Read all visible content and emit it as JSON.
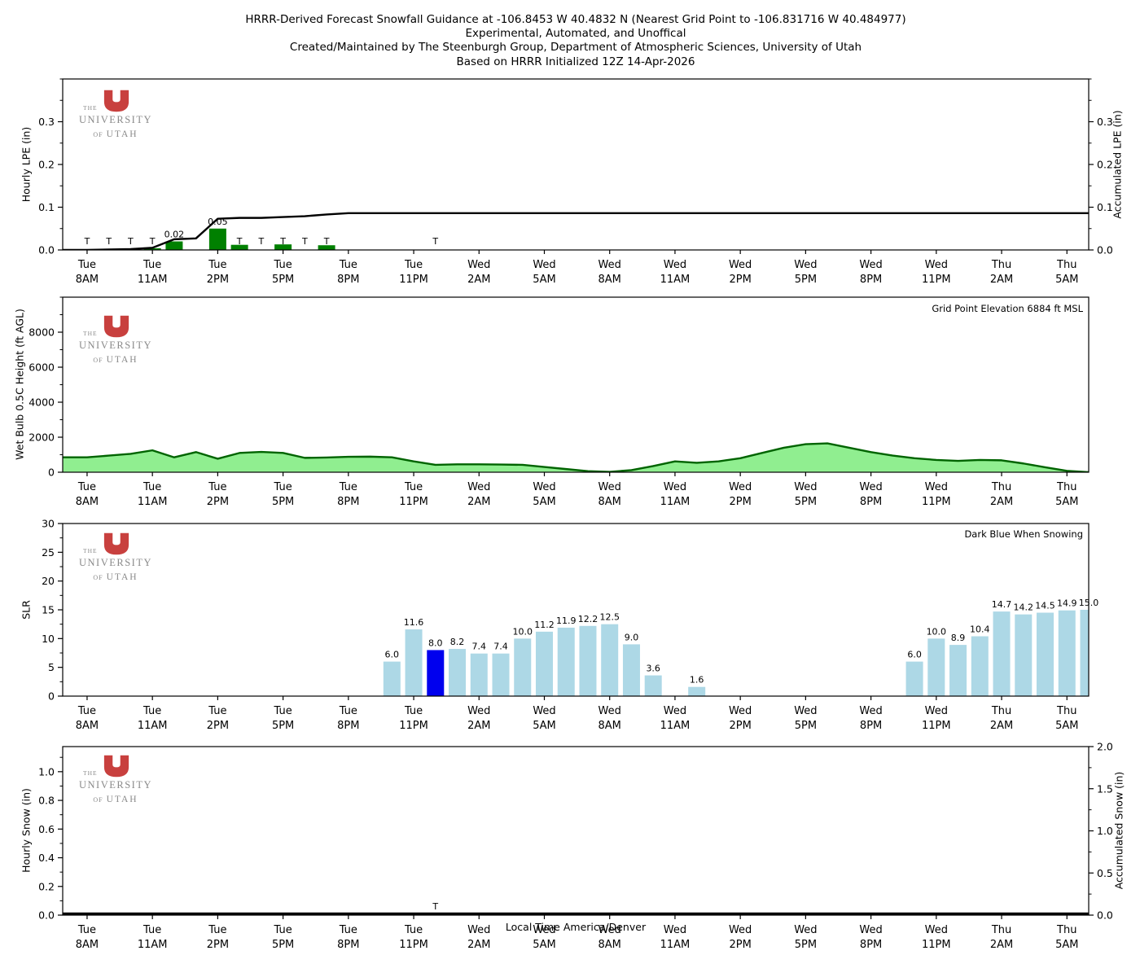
{
  "title": {
    "line1": "HRRR-Derived Forecast Snowfall Guidance at -106.8453 W 40.4832 N (Nearest Grid Point to -106.831716 W 40.484977)",
    "line2": "Experimental, Automated, and Unoffical",
    "line3": "Created/Maintained by The Steenburgh Group, Department of Atmospheric Sciences, University of Utah",
    "line4": "Based on HRRR Initialized 12Z 14-Apr-2026"
  },
  "logo": {
    "the": "THE",
    "university": "UNIVERSITY",
    "of": "OF",
    "utah": "UTAH",
    "red": "#c8403e"
  },
  "x_axis": {
    "label": "Local Time America/Denver",
    "ticks": [
      {
        "h": 0,
        "day": "Tue",
        "time": "8AM"
      },
      {
        "h": 3,
        "day": "Tue",
        "time": "11AM"
      },
      {
        "h": 6,
        "day": "Tue",
        "time": "2PM"
      },
      {
        "h": 9,
        "day": "Tue",
        "time": "5PM"
      },
      {
        "h": 12,
        "day": "Tue",
        "time": "8PM"
      },
      {
        "h": 15,
        "day": "Tue",
        "time": "11PM"
      },
      {
        "h": 18,
        "day": "Wed",
        "time": "2AM"
      },
      {
        "h": 21,
        "day": "Wed",
        "time": "5AM"
      },
      {
        "h": 24,
        "day": "Wed",
        "time": "8AM"
      },
      {
        "h": 27,
        "day": "Wed",
        "time": "11AM"
      },
      {
        "h": 30,
        "day": "Wed",
        "time": "2PM"
      },
      {
        "h": 33,
        "day": "Wed",
        "time": "5PM"
      },
      {
        "h": 36,
        "day": "Wed",
        "time": "8PM"
      },
      {
        "h": 39,
        "day": "Wed",
        "time": "11PM"
      },
      {
        "h": 42,
        "day": "Thu",
        "time": "2AM"
      },
      {
        "h": 45,
        "day": "Thu",
        "time": "5AM"
      }
    ]
  },
  "chart_data": [
    {
      "name": "hourly_lpe",
      "type": "bar",
      "ylabel": "Hourly LPE (in)",
      "ylabel_right": "Accumulated LPE (in)",
      "ylim": [
        0,
        0.4
      ],
      "yticks": {
        "values": [
          0,
          0.1,
          0.2,
          0.3
        ],
        "labels": [
          "0.0",
          "0.1",
          "0.2",
          "0.3"
        ],
        "minor_step": 0.05
      },
      "right_ticks": {
        "ylim": [
          0,
          0.4
        ],
        "values": [
          0,
          0.1,
          0.2,
          0.3
        ],
        "labels": [
          "0.0",
          "0.1",
          "0.2",
          "0.3"
        ],
        "minor_step": 0.05
      },
      "bar_color": "#008000",
      "bars": [
        {
          "h": 3,
          "v": 0.004,
          "label": null
        },
        {
          "h": 4,
          "v": 0.02,
          "label": "0.02"
        },
        {
          "h": 6,
          "v": 0.05,
          "label": "0.05"
        },
        {
          "h": 7,
          "v": 0.012,
          "label": null
        },
        {
          "h": 9,
          "v": 0.013,
          "label": null
        },
        {
          "h": 11,
          "v": 0.011,
          "label": null
        }
      ],
      "trace_hours": [
        0,
        1,
        2,
        3,
        7,
        8,
        9,
        10,
        11,
        16
      ],
      "trace_symbol": "T",
      "line": {
        "label": "Accumulated LPE",
        "color": "#000000",
        "width": 2.4,
        "values": [
          0.0,
          0.001,
          0.002,
          0.005,
          0.025,
          0.027,
          0.073,
          0.075,
          0.075,
          0.077,
          0.079,
          0.083,
          0.086,
          0.086,
          0.086,
          0.086,
          0.086,
          0.086,
          0.086,
          0.086,
          0.086,
          0.086,
          0.086,
          0.086,
          0.086,
          0.086,
          0.086,
          0.086,
          0.086,
          0.086,
          0.086,
          0.086,
          0.086,
          0.086,
          0.086,
          0.086,
          0.086,
          0.086,
          0.086,
          0.086,
          0.086,
          0.086,
          0.086,
          0.086,
          0.086,
          0.086
        ]
      }
    },
    {
      "name": "wet_bulb_05c_height",
      "type": "area",
      "ylabel": "Wet Bulb 0.5C Height (ft AGL)",
      "annotation": "Grid Point Elevation 6884 ft MSL",
      "ylim": [
        0,
        10000
      ],
      "yticks": {
        "values": [
          0,
          2000,
          4000,
          6000,
          8000
        ],
        "labels": [
          "0",
          "2000",
          "4000",
          "6000",
          "8000"
        ],
        "minor_step": 1000
      },
      "area": {
        "fill": "#90ee90",
        "line_color": "#006400",
        "line_width": 2.4,
        "values": [
          850,
          950,
          1050,
          1250,
          850,
          1150,
          770,
          1100,
          1160,
          1100,
          820,
          840,
          880,
          890,
          850,
          620,
          420,
          450,
          450,
          440,
          420,
          300,
          180,
          60,
          20,
          120,
          350,
          620,
          540,
          620,
          800,
          1100,
          1400,
          1600,
          1650,
          1400,
          1150,
          950,
          800,
          700,
          650,
          700,
          680,
          500,
          280,
          80,
          0
        ]
      }
    },
    {
      "name": "slr",
      "type": "bar",
      "ylabel": "SLR",
      "annotation": "Dark Blue When Snowing",
      "ylim": [
        0,
        30
      ],
      "yticks": {
        "values": [
          0,
          5,
          10,
          15,
          20,
          25,
          30
        ],
        "labels": [
          "0",
          "5",
          "10",
          "15",
          "20",
          "25",
          "30"
        ],
        "minor_step": 2.5
      },
      "bar_color": "#add8e6",
      "snow_color": "#0000ee",
      "bars": [
        {
          "h": 14,
          "v": 6.0,
          "label": "6.0"
        },
        {
          "h": 15,
          "v": 11.6,
          "label": "11.6"
        },
        {
          "h": 16,
          "v": 8.0,
          "label": "8.0",
          "snowing": true
        },
        {
          "h": 17,
          "v": 8.2,
          "label": "8.2"
        },
        {
          "h": 18,
          "v": 7.4,
          "label": "7.4"
        },
        {
          "h": 19,
          "v": 7.4,
          "label": "7.4"
        },
        {
          "h": 20,
          "v": 10.0,
          "label": "10.0"
        },
        {
          "h": 21,
          "v": 11.2,
          "label": "11.2"
        },
        {
          "h": 22,
          "v": 11.9,
          "label": "11.9"
        },
        {
          "h": 23,
          "v": 12.2,
          "label": "12.2"
        },
        {
          "h": 24,
          "v": 12.5,
          "label": "12.5"
        },
        {
          "h": 25,
          "v": 9.0,
          "label": "9.0"
        },
        {
          "h": 26,
          "v": 3.6,
          "label": "3.6"
        },
        {
          "h": 28,
          "v": 1.6,
          "label": "1.6"
        },
        {
          "h": 38,
          "v": 6.0,
          "label": "6.0"
        },
        {
          "h": 39,
          "v": 10.0,
          "label": "10.0"
        },
        {
          "h": 40,
          "v": 8.9,
          "label": "8.9"
        },
        {
          "h": 41,
          "v": 10.4,
          "label": "10.4"
        },
        {
          "h": 42,
          "v": 14.7,
          "label": "14.7"
        },
        {
          "h": 43,
          "v": 14.2,
          "label": "14.2"
        },
        {
          "h": 44,
          "v": 14.5,
          "label": "14.5"
        },
        {
          "h": 45,
          "v": 14.9,
          "label": "14.9"
        },
        {
          "h": 46,
          "v": 15.0,
          "label": "15.0"
        }
      ]
    },
    {
      "name": "hourly_snow",
      "type": "bar",
      "ylabel": "Hourly Snow (in)",
      "ylabel_right": "Accumulated Snow (in)",
      "ylim": [
        0,
        1.175
      ],
      "yticks": {
        "values": [
          0,
          0.2,
          0.4,
          0.6,
          0.8,
          1.0
        ],
        "labels": [
          "0.0",
          "0.2",
          "0.4",
          "0.6",
          "0.8",
          "1.0"
        ],
        "minor_step": 0.1
      },
      "right_ticks": {
        "ylim": [
          0,
          2.0
        ],
        "values": [
          0,
          0.5,
          1.0,
          1.5,
          2.0
        ],
        "labels": [
          "0.0",
          "0.5",
          "1.0",
          "1.5",
          "2.0"
        ],
        "minor_step": 0.25
      },
      "bar_color": "#add8e6",
      "bars": [],
      "trace_hours": [
        16
      ],
      "trace_symbol": "T",
      "zero_line": {
        "label": "Accumulated Snow",
        "color": "#000000",
        "width": 3.2
      }
    }
  ]
}
